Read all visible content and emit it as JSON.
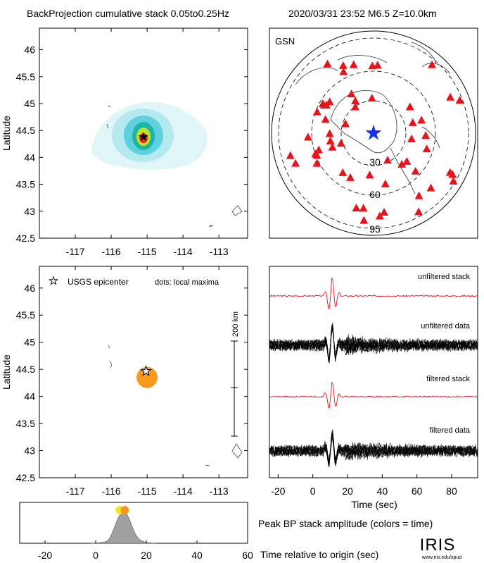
{
  "header": {
    "left_title": "BackProjection cumulative stack 0.05to0.25Hz",
    "right_title": "2020/03/31 23:52   M6.5  Z=10.0km"
  },
  "colors": {
    "station": "#e8141c",
    "epicenter_star": "#1a2cf0",
    "stack_trace": "#e8141c",
    "data_trace": "#000000",
    "maxima_dot": "#f59a1f",
    "histogram_fill": "#a0a0a0",
    "heat_outer": "#d6f3f7",
    "heat_mid": "#3cc6d8",
    "heat_core": "#f4d21b",
    "heat_peak": "#d8281c"
  },
  "chart_data": [
    {
      "id": "cumulative_stack_map",
      "type": "heatmap",
      "ylabel": "Latitude",
      "xlabel": "",
      "xlim": [
        -118,
        -112.2
      ],
      "ylim": [
        42.5,
        46.4
      ],
      "x_ticks": [
        -117,
        -116,
        -115,
        -114,
        -113
      ],
      "y_ticks": [
        42.5,
        43,
        43.5,
        44,
        44.5,
        45,
        45.5,
        46
      ],
      "peak": {
        "lon": -115.0,
        "lat": 44.43
      },
      "epicenter": {
        "lon": -115.03,
        "lat": 44.47
      },
      "icons": [
        "epicenter-star-icon"
      ]
    },
    {
      "id": "station_map",
      "type": "scatter",
      "network_label": "GSN",
      "distance_rings_deg": [
        30,
        60,
        95
      ],
      "ring_labels": [
        "30",
        "60",
        "95"
      ],
      "station_count": 56,
      "epicenter_marker": "blue-star-icon"
    },
    {
      "id": "local_maxima_map",
      "type": "scatter",
      "ylabel": "Latitude",
      "xlim": [
        -118,
        -112.2
      ],
      "ylim": [
        42.5,
        46.4
      ],
      "x_ticks": [
        -117,
        -116,
        -115,
        -114,
        -113
      ],
      "y_ticks": [
        42.5,
        43,
        43.5,
        44,
        44.5,
        45,
        45.5,
        46
      ],
      "legend_star": "USGS epicenter",
      "legend_dots": "dots: local maxima",
      "scale_bar_label": "200 km",
      "maxima": [
        {
          "lon": -115.0,
          "lat": 44.35,
          "time_sec": 11
        }
      ],
      "epicenter": {
        "lon": -115.03,
        "lat": 44.47
      }
    },
    {
      "id": "waveforms",
      "type": "line",
      "xlabel": "Time (sec)",
      "xlim": [
        -25,
        95
      ],
      "x_ticks": [
        -20,
        0,
        20,
        40,
        60,
        80
      ],
      "labels": [
        "unfiltered stack",
        "unfiltered data",
        "filtered stack",
        "filtered data"
      ],
      "onset_sec": 6,
      "peak_sec": 11
    },
    {
      "id": "peak_amplitude",
      "type": "area",
      "title": "Peak BP stack amplitude (colors = time)",
      "xlabel": "Time relative to origin (sec)",
      "xlim": [
        -30,
        60
      ],
      "x_ticks": [
        -20,
        0,
        20,
        40,
        60
      ],
      "x": [
        -2,
        0,
        2,
        4,
        5,
        6,
        7,
        8,
        9,
        10,
        11,
        12,
        13,
        14,
        15,
        16,
        17,
        18,
        19,
        20,
        22,
        24
      ],
      "values": [
        0.0,
        0.01,
        0.02,
        0.05,
        0.1,
        0.22,
        0.42,
        0.62,
        0.8,
        0.92,
        1.0,
        0.94,
        0.8,
        0.6,
        0.4,
        0.24,
        0.14,
        0.08,
        0.05,
        0.03,
        0.01,
        0.0
      ],
      "dots": [
        {
          "time": 9.5,
          "color": "#f2e81f"
        },
        {
          "time": 11.5,
          "color": "#f59a1f"
        }
      ]
    }
  ],
  "footer": {
    "logo": "IRIS",
    "logo_sub": "www.iris.edu/spud"
  }
}
